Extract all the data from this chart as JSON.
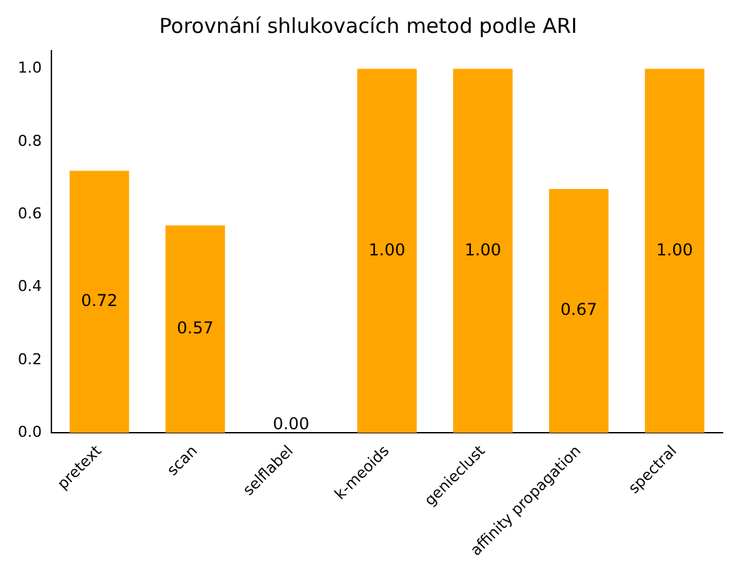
{
  "chart_data": {
    "type": "bar",
    "title": "Porovnání shlukovacích metod podle ARI",
    "categories": [
      "pretext",
      "scan",
      "selflabel",
      "k-meoids",
      "genieclust",
      "affinity propagation",
      "spectral"
    ],
    "values": [
      0.72,
      0.57,
      0.0,
      1.0,
      1.0,
      0.67,
      1.0
    ],
    "value_labels": [
      "0.72",
      "0.57",
      "0.00",
      "1.00",
      "1.00",
      "0.67",
      "1.00"
    ],
    "color": "#ffa500",
    "ylim": [
      0,
      1.05
    ],
    "yticks": [
      {
        "value": 0,
        "label": "0.0"
      },
      {
        "value": 0.2,
        "label": "0.2"
      },
      {
        "value": 0.4,
        "label": "0.4"
      },
      {
        "value": 0.6,
        "label": "0.6"
      },
      {
        "value": 0.8,
        "label": "0.8"
      },
      {
        "value": 1,
        "label": "1.0"
      }
    ],
    "grid": false,
    "legend": false
  }
}
